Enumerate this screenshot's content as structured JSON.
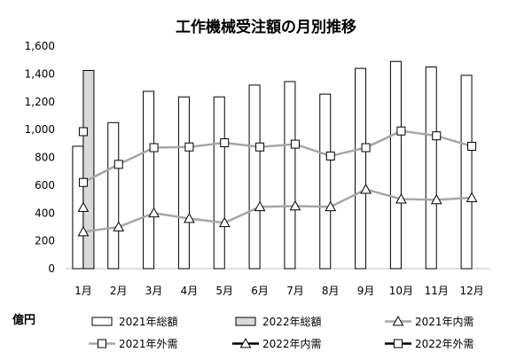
{
  "chart_data": {
    "type": "bar",
    "title": "工作機械受注額の月別推移",
    "unit_label": "億円",
    "categories": [
      "1月",
      "2月",
      "3月",
      "4月",
      "5月",
      "6月",
      "7月",
      "8月",
      "9月",
      "10月",
      "11月",
      "12月"
    ],
    "ylim": [
      0,
      1600
    ],
    "yticks": [
      0,
      200,
      400,
      600,
      800,
      1000,
      1200,
      1400,
      1600
    ],
    "ytick_labels": [
      "0",
      "200",
      "400",
      "600",
      "800",
      "1,000",
      "1,200",
      "1,400",
      "1,600"
    ],
    "grid": false,
    "legend_position": "bottom",
    "series": [
      {
        "name": "2021年総額",
        "type": "bar",
        "color": "#ffffff",
        "values": [
          880,
          1050,
          1275,
          1235,
          1235,
          1320,
          1345,
          1255,
          1440,
          1490,
          1450,
          1390
        ]
      },
      {
        "name": "2022年総額",
        "type": "bar",
        "color": "#d9d9d9",
        "values": [
          1425,
          null,
          null,
          null,
          null,
          null,
          null,
          null,
          null,
          null,
          null,
          null
        ]
      },
      {
        "name": "2021年内需",
        "type": "line",
        "marker": "triangle",
        "color": "#a6a6a6",
        "values": [
          265,
          300,
          400,
          360,
          330,
          445,
          450,
          445,
          570,
          500,
          495,
          510
        ]
      },
      {
        "name": "2021年外需",
        "type": "line",
        "marker": "square",
        "color": "#a6a6a6",
        "values": [
          620,
          750,
          870,
          875,
          905,
          875,
          895,
          810,
          870,
          990,
          955,
          880
        ]
      },
      {
        "name": "2022年内需",
        "type": "line",
        "marker": "triangle",
        "color": "#000000",
        "values": [
          440,
          null,
          null,
          null,
          null,
          null,
          null,
          null,
          null,
          null,
          null,
          null
        ]
      },
      {
        "name": "2022年外需",
        "type": "line",
        "marker": "square",
        "color": "#000000",
        "values": [
          985,
          null,
          null,
          null,
          null,
          null,
          null,
          null,
          null,
          null,
          null,
          null
        ]
      }
    ]
  }
}
